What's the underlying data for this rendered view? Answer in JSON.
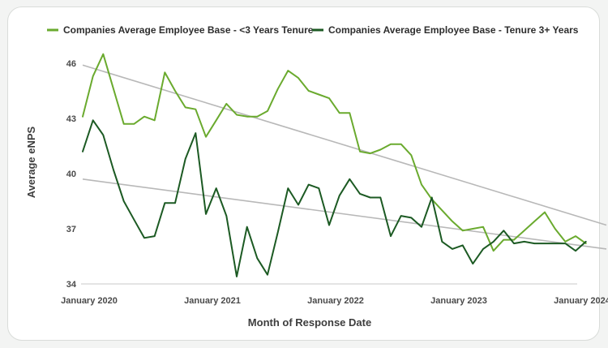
{
  "chart_data": {
    "type": "line",
    "title": "",
    "xlabel": "Month of Response Date",
    "ylabel": "Average eNPS",
    "ylim": [
      34,
      47.2
    ],
    "xlim": [
      0,
      51
    ],
    "yticks": [
      34,
      37,
      40,
      43,
      46
    ],
    "xticks": [
      {
        "x": 0,
        "label": "January 2020"
      },
      {
        "x": 12,
        "label": "January 2021"
      },
      {
        "x": 24,
        "label": "January 2022"
      },
      {
        "x": 36,
        "label": "January 2023"
      },
      {
        "x": 48,
        "label": "January 2024"
      }
    ],
    "series": [
      {
        "name": "Companies Average Employee Base - <3 Years Tenure",
        "color": "#6aaa2e",
        "x": [
          0,
          1,
          2,
          3,
          4,
          5,
          6,
          7,
          8,
          9,
          10,
          11,
          12,
          13,
          14,
          15,
          16,
          17,
          18,
          19,
          20,
          21,
          22,
          23,
          24,
          25,
          26,
          27,
          28,
          29,
          30,
          31,
          32,
          33,
          34,
          35,
          36,
          37,
          38,
          39,
          40,
          41,
          42,
          43,
          44,
          45,
          46,
          47,
          48,
          49
        ],
        "values": [
          43.1,
          45.3,
          46.5,
          44.6,
          42.7,
          42.7,
          43.1,
          42.9,
          45.5,
          44.5,
          43.6,
          43.5,
          42.0,
          42.9,
          43.8,
          43.2,
          43.1,
          43.1,
          43.4,
          44.6,
          45.6,
          45.2,
          44.5,
          44.3,
          44.1,
          43.3,
          43.3,
          41.2,
          41.1,
          41.3,
          41.6,
          41.6,
          41.0,
          39.4,
          38.6,
          38.0,
          37.4,
          36.9,
          37.0,
          37.1,
          35.8,
          36.4,
          36.4,
          36.9,
          37.4,
          37.9,
          37.0,
          36.3,
          36.6,
          36.2
        ]
      },
      {
        "name": "Companies Average Employee Base - Tenure 3+ Years",
        "color": "#1c5a23",
        "x": [
          0,
          1,
          2,
          3,
          4,
          5,
          6,
          7,
          8,
          9,
          10,
          11,
          12,
          13,
          14,
          15,
          16,
          17,
          18,
          19,
          20,
          21,
          22,
          23,
          24,
          25,
          26,
          27,
          28,
          29,
          30,
          31,
          32,
          33,
          34,
          35,
          36,
          37,
          38,
          39,
          40,
          41,
          42,
          43,
          44,
          45,
          46,
          47,
          48,
          49
        ],
        "values": [
          41.2,
          42.9,
          42.1,
          40.2,
          38.5,
          37.5,
          36.5,
          36.6,
          38.4,
          38.4,
          40.8,
          42.2,
          37.8,
          39.2,
          37.7,
          34.4,
          37.1,
          35.4,
          34.5,
          36.8,
          39.2,
          38.3,
          39.4,
          39.2,
          37.2,
          38.8,
          39.7,
          38.9,
          38.7,
          38.7,
          36.6,
          37.7,
          37.6,
          37.1,
          38.7,
          36.3,
          35.9,
          36.1,
          35.1,
          35.9,
          36.3,
          36.9,
          36.2,
          36.3,
          36.2,
          36.2,
          36.2,
          36.2,
          35.8,
          36.3
        ]
      }
    ],
    "trendlines": [
      {
        "name": "<3 Years Tenure trend",
        "color": "#b8b8b8",
        "from": [
          0,
          45.9
        ],
        "to": [
          51,
          37.2
        ]
      },
      {
        "name": "Tenure 3+ Years trend",
        "color": "#b8b8b8",
        "from": [
          0,
          39.7
        ],
        "to": [
          51,
          35.9
        ]
      }
    ],
    "legend_position": "top-center",
    "grid": false
  }
}
